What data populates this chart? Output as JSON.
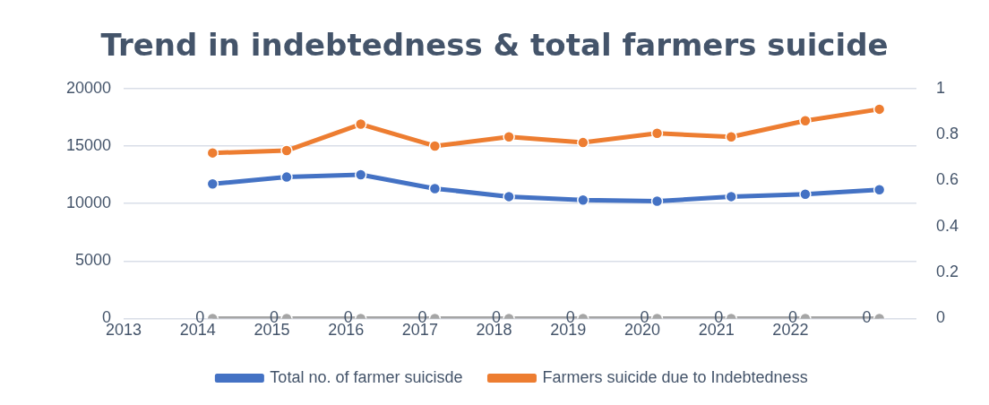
{
  "chart_data": {
    "type": "line",
    "title": "Trend in indebtedness & total farmers suicide",
    "xlim": [
      2013,
      2023.7
    ],
    "xticks": [
      2013,
      2014,
      2015,
      2016,
      2017,
      2018,
      2019,
      2020,
      2021,
      2022
    ],
    "ylim": [
      0,
      20000
    ],
    "yticks": [
      0,
      5000,
      10000,
      15000,
      20000
    ],
    "y2lim": [
      0,
      1
    ],
    "y2ticks": [
      0,
      0.2,
      0.4,
      0.6,
      0.8,
      1
    ],
    "x": [
      2014.2,
      2015.2,
      2016.2,
      2017.2,
      2018.2,
      2019.2,
      2020.2,
      2021.2,
      2022.2,
      2023.2
    ],
    "series": [
      {
        "name": "Total no. of farmer suicisde",
        "color": "#4472c4",
        "values": [
          11700,
          12300,
          12500,
          11300,
          10600,
          10300,
          10200,
          10600,
          10800,
          11200
        ]
      },
      {
        "name": "Farmers suicide due to Indebtedness",
        "color": "#ed7d31",
        "values": [
          14400,
          14600,
          16900,
          15000,
          15800,
          15300,
          16100,
          15800,
          17200,
          18200
        ]
      },
      {
        "color": "#a5a5a5",
        "values": [
          0,
          0,
          0,
          0,
          0,
          0,
          0,
          0,
          0,
          0
        ],
        "value_labels": [
          "0",
          "0",
          "0",
          "0",
          "0",
          "0",
          "0",
          "0",
          "0",
          "0"
        ]
      }
    ],
    "grid": "y",
    "legend": "bottom",
    "marker": "circle",
    "line_style": "solid"
  }
}
